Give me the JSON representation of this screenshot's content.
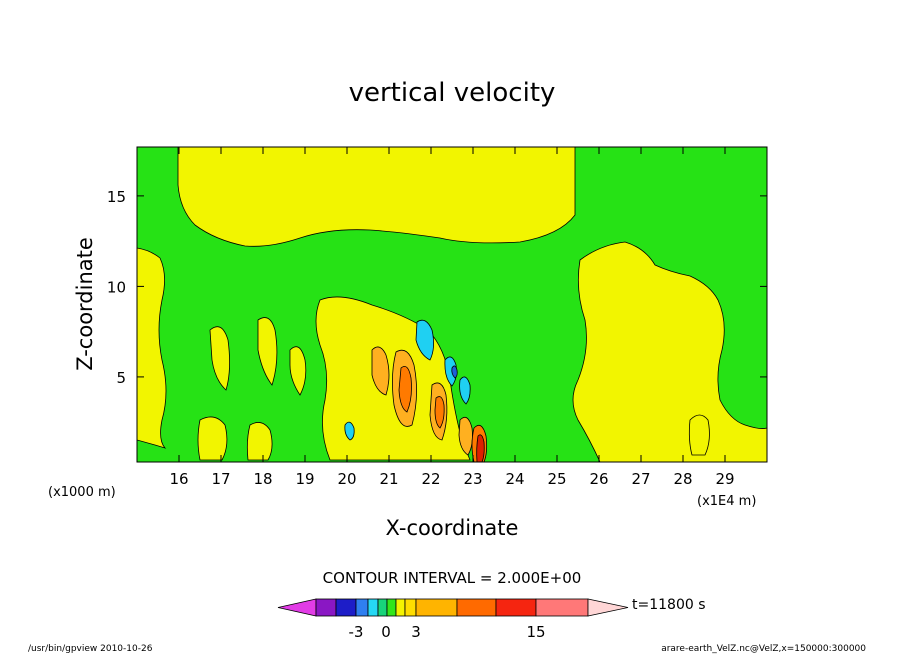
{
  "chart_data": {
    "type": "heatmap",
    "title": "vertical velocity",
    "xlabel": "X-coordinate",
    "ylabel": "Z-coordinate",
    "x_unit_bottom_left": "(x1000 m)",
    "x_unit_bottom_right": "(x1E4 m)",
    "x_ticks": [
      "16",
      "17",
      "18",
      "19",
      "20",
      "21",
      "22",
      "23",
      "24",
      "25",
      "26",
      "27",
      "28",
      "29"
    ],
    "x_tick_values": [
      16,
      17,
      18,
      19,
      20,
      21,
      22,
      23,
      24,
      25,
      26,
      27,
      28,
      29
    ],
    "xlim": [
      15,
      30
    ],
    "y_ticks": [
      "5",
      "10",
      "15"
    ],
    "y_tick_values": [
      5,
      10,
      15
    ],
    "ylim": [
      0.3,
      17.7
    ],
    "contour_interval_text": "CONTOUR INTERVAL = 2.000E+00",
    "colorbar": {
      "labels": [
        "-3",
        "0",
        "3",
        "15"
      ],
      "label_values": [
        -3,
        0,
        3,
        15
      ],
      "time_label": "t=11800 s",
      "colors": [
        "#e23ce6",
        "#8a17c4",
        "#1d1dc8",
        "#2f7ff0",
        "#26d8f4",
        "#18d47a",
        "#33e61a",
        "#f5f400",
        "#ffdd00",
        "#ffb400",
        "#ff6a00",
        "#f52510",
        "#ff7878",
        "#ffb6c1",
        "#ffd6d6"
      ]
    },
    "field_colors": {
      "bg_green": "#26e215",
      "yellow": "#f2f500",
      "orange": "#ffb020",
      "dark_orange": "#ff7a00",
      "red": "#dd2000",
      "cyan": "#1fd0f2",
      "blue": "#1f5fd8"
    }
  },
  "footer": {
    "left": "/usr/bin/gpview  2010-10-26",
    "right": "arare-earth_VelZ.nc@VelZ,x=150000:300000"
  }
}
